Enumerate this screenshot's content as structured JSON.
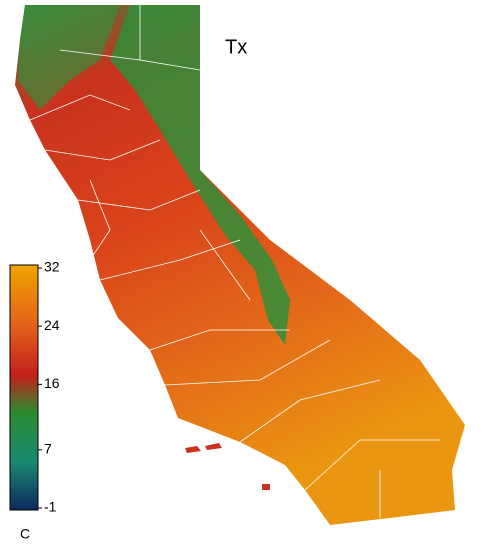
{
  "title": "Tx",
  "colorbar": {
    "unit": "C",
    "range": [
      -1,
      32
    ],
    "ticks": [
      -1,
      7,
      16,
      24,
      32
    ]
  }
}
